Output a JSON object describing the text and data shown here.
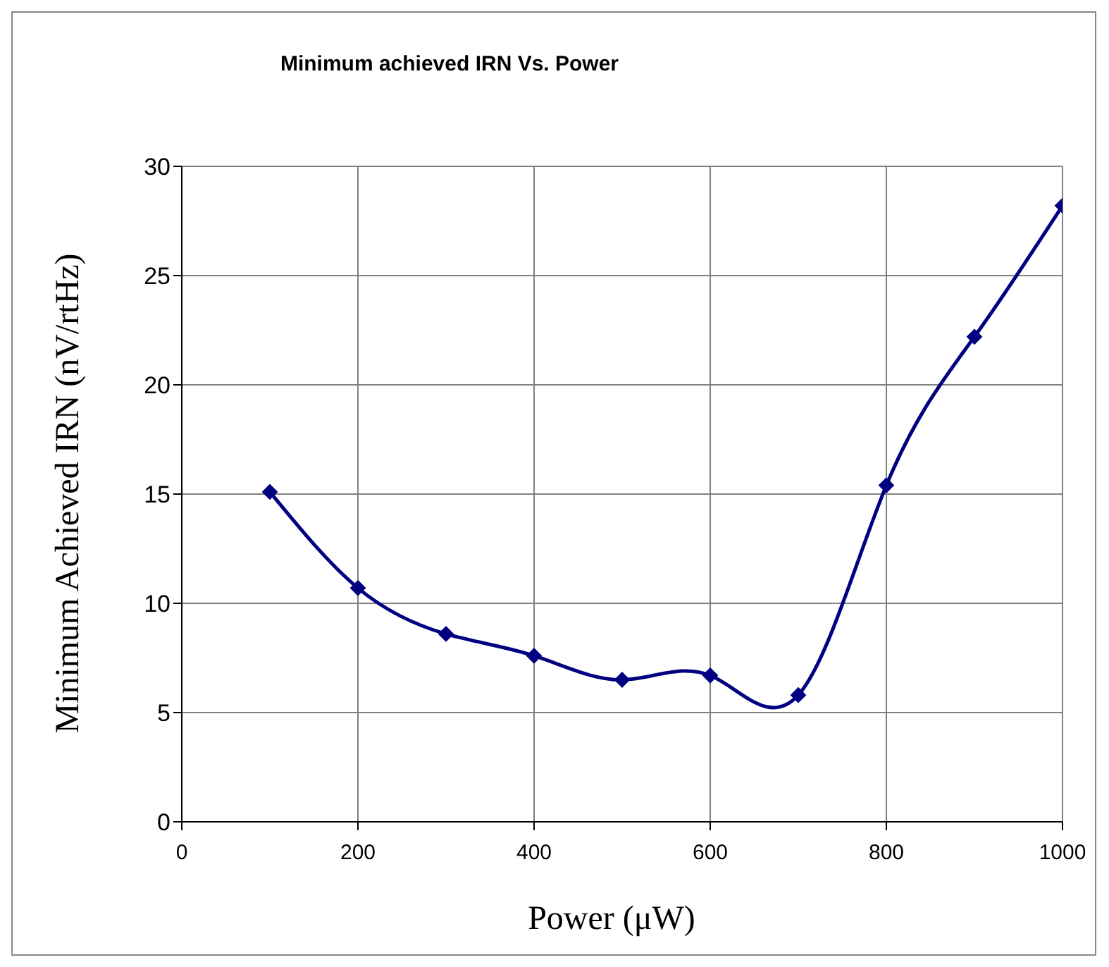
{
  "chart_data": {
    "type": "line",
    "title": "Minimum achieved IRN Vs. Power",
    "xlabel": "Power (μW)",
    "ylabel": "Minimum Achieved IRN (nV/rtHz)",
    "x": [
      100,
      200,
      300,
      400,
      500,
      600,
      700,
      800,
      900,
      1000
    ],
    "series": [
      {
        "color": "#000080",
        "values": [
          15.1,
          10.7,
          8.6,
          7.6,
          6.5,
          6.7,
          5.8,
          15.4,
          22.2,
          28.2
        ]
      }
    ],
    "xlim": [
      0,
      1000
    ],
    "xticks": [
      0,
      200,
      400,
      600,
      800,
      1000
    ],
    "ylim": [
      0,
      30
    ],
    "yticks": [
      0,
      5,
      10,
      15,
      20,
      25,
      30
    ],
    "grid": true,
    "legend": false,
    "marker": "diamond",
    "line_style": "solid"
  }
}
